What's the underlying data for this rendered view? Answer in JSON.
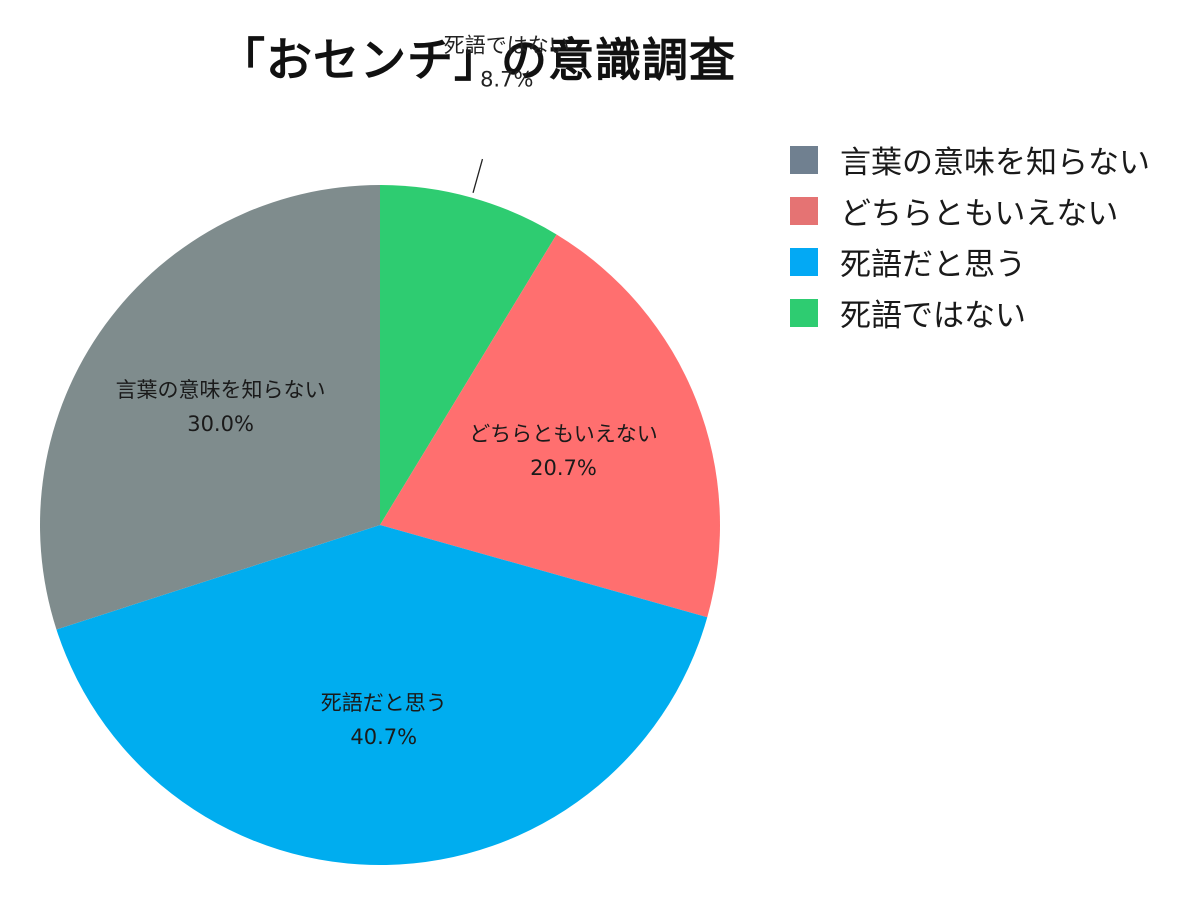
{
  "chart_data": {
    "type": "pie",
    "title": "「おセンチ」の意識調査",
    "start_angle_deg": 0,
    "direction": "clockwise",
    "slices": [
      {
        "label": "死語ではない",
        "value": 8.7,
        "display": "8.7%",
        "color": "#2ecc71",
        "legend_color": "#2ecc71",
        "label_position": "outside"
      },
      {
        "label": "どちらともいえない",
        "value": 20.7,
        "display": "20.7%",
        "color": "#ff6f6f",
        "legend_color": "#e57373",
        "label_position": "inside"
      },
      {
        "label": "死語だと思う",
        "value": 40.7,
        "display": "40.7%",
        "color": "#00adef",
        "legend_color": "#03a9f4",
        "label_position": "inside"
      },
      {
        "label": "言葉の意味を知らない",
        "value": 30.0,
        "display": "30.0%",
        "color": "#7f8c8d",
        "legend_color": "#708090",
        "label_position": "inside"
      }
    ],
    "legend": {
      "position": "top-right",
      "order": [
        "言葉の意味を知らない",
        "どちらともいえない",
        "死語だと思う",
        "死語ではない"
      ]
    }
  }
}
